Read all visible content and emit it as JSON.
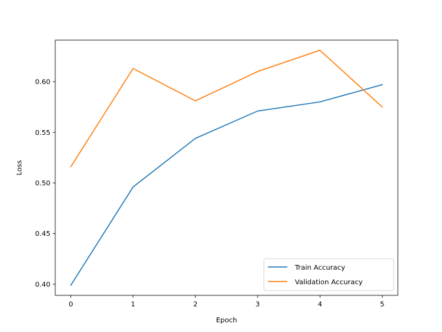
{
  "chart_data": {
    "type": "line",
    "xlabel": "Epoch",
    "ylabel": "Loss",
    "x": [
      0,
      1,
      2,
      3,
      4,
      5
    ],
    "x_ticks": [
      "0",
      "1",
      "2",
      "3",
      "4",
      "5"
    ],
    "y_ticks": [
      "0.40",
      "0.45",
      "0.50",
      "0.55",
      "0.60"
    ],
    "xlim": [
      -0.25,
      5.25
    ],
    "ylim": [
      0.389,
      0.641
    ],
    "grid": false,
    "legend_position": "lower-right",
    "series": [
      {
        "name": "Train Accuracy",
        "color": "#1f77b4",
        "values": [
          0.399,
          0.496,
          0.544,
          0.571,
          0.58,
          0.597
        ]
      },
      {
        "name": "Validation Accuracy",
        "color": "#ff7f0e",
        "values": [
          0.516,
          0.613,
          0.581,
          0.61,
          0.631,
          0.575
        ]
      }
    ]
  }
}
